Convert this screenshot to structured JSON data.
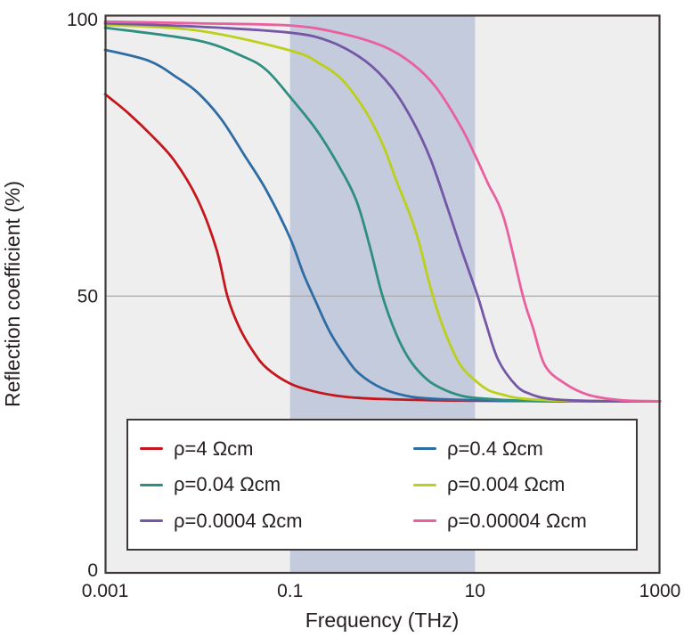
{
  "chart_data": {
    "type": "line",
    "title": "",
    "xlabel": "Frequency (THz)",
    "ylabel": "Reflection coefficient (%)",
    "x_scale": "log",
    "xlim": [
      0.001,
      1000
    ],
    "ylim": [
      0,
      101
    ],
    "x_ticks": [
      0.001,
      0.1,
      10,
      1000
    ],
    "x_tick_labels": [
      "0.001",
      "0.1",
      "10",
      "1000"
    ],
    "y_ticks": [
      0,
      50,
      100
    ],
    "y_tick_labels": [
      "0",
      "50",
      "100"
    ],
    "grid": "horizontal line at y=50 only",
    "highlight_band_x": [
      0.1,
      10
    ],
    "legend_position": "inside bottom, 2 columns, white box with dark border",
    "colors": {
      "plot_bg": "#efeeee",
      "band": "#c3cbdd",
      "frame": "#3f3a39",
      "grid": "#a9a9a9",
      "text": "#262020"
    },
    "series": [
      {
        "label": "ρ=4 Ωcm",
        "rho_ohm_cm": 4,
        "color": "#c4161c",
        "points": [
          [
            0.001,
            86.5
          ],
          [
            0.0018,
            83
          ],
          [
            0.0032,
            79
          ],
          [
            0.0056,
            74.5
          ],
          [
            0.01,
            67.5
          ],
          [
            0.016,
            58.5
          ],
          [
            0.021,
            50
          ],
          [
            0.028,
            44.5
          ],
          [
            0.04,
            40
          ],
          [
            0.056,
            37
          ],
          [
            0.1,
            34.2
          ],
          [
            0.18,
            32.8
          ],
          [
            0.32,
            32
          ],
          [
            0.56,
            31.6
          ],
          [
            1,
            31.4
          ],
          [
            3.2,
            31.2
          ],
          [
            10,
            31.1
          ],
          [
            100,
            31
          ],
          [
            1000,
            31
          ]
        ]
      },
      {
        "label": "ρ=0.4 Ωcm",
        "rho_ohm_cm": 0.4,
        "color": "#2e6da4",
        "points": [
          [
            0.001,
            94.5
          ],
          [
            0.003,
            92.5
          ],
          [
            0.006,
            89.5
          ],
          [
            0.01,
            86.8
          ],
          [
            0.018,
            82
          ],
          [
            0.032,
            75.5
          ],
          [
            0.056,
            69
          ],
          [
            0.1,
            60.5
          ],
          [
            0.14,
            54
          ],
          [
            0.19,
            49
          ],
          [
            0.27,
            43.5
          ],
          [
            0.4,
            39
          ],
          [
            0.56,
            36
          ],
          [
            1,
            33.3
          ],
          [
            1.8,
            32
          ],
          [
            3.2,
            31.5
          ],
          [
            10,
            31.2
          ],
          [
            100,
            31
          ],
          [
            1000,
            31
          ]
        ]
      },
      {
        "label": "ρ=0.04 Ωcm",
        "rho_ohm_cm": 0.04,
        "color": "#2f8e7f",
        "points": [
          [
            0.001,
            98.5
          ],
          [
            0.01,
            96.2
          ],
          [
            0.032,
            93.2
          ],
          [
            0.056,
            90.8
          ],
          [
            0.1,
            86
          ],
          [
            0.19,
            80.2
          ],
          [
            0.33,
            73.8
          ],
          [
            0.52,
            67.3
          ],
          [
            0.72,
            59.3
          ],
          [
            1,
            50
          ],
          [
            1.4,
            43.2
          ],
          [
            2,
            38.3
          ],
          [
            3.1,
            34.8
          ],
          [
            4.8,
            33
          ],
          [
            7.5,
            31.9
          ],
          [
            12,
            31.5
          ],
          [
            32,
            31.1
          ],
          [
            100,
            31
          ],
          [
            1000,
            31
          ]
        ]
      },
      {
        "label": "ρ=0.004 Ωcm",
        "rho_ohm_cm": 0.004,
        "color": "#bccf1b",
        "points": [
          [
            0.001,
            99
          ],
          [
            0.01,
            98
          ],
          [
            0.1,
            94.4
          ],
          [
            0.21,
            92
          ],
          [
            0.37,
            89
          ],
          [
            0.65,
            83.5
          ],
          [
            1,
            77.5
          ],
          [
            1.4,
            71
          ],
          [
            2,
            64.5
          ],
          [
            2.5,
            59.5
          ],
          [
            3.5,
            50
          ],
          [
            5,
            42.5
          ],
          [
            7,
            37.5
          ],
          [
            10,
            34.8
          ],
          [
            14,
            33
          ],
          [
            20,
            32.2
          ],
          [
            32,
            31.5
          ],
          [
            100,
            31.1
          ],
          [
            1000,
            31
          ]
        ]
      },
      {
        "label": "ρ=0.0004 Ωcm",
        "rho_ohm_cm": 0.0004,
        "color": "#7457a6",
        "points": [
          [
            0.001,
            99.3
          ],
          [
            0.01,
            98.7
          ],
          [
            0.1,
            97.6
          ],
          [
            0.27,
            96
          ],
          [
            0.65,
            92.5
          ],
          [
            1.26,
            87.7
          ],
          [
            2.1,
            81.8
          ],
          [
            3.3,
            74.8
          ],
          [
            5.1,
            65.7
          ],
          [
            7.1,
            58.5
          ],
          [
            10.7,
            50
          ],
          [
            13,
            45.3
          ],
          [
            17.8,
            38.5
          ],
          [
            28,
            33.8
          ],
          [
            40,
            32.3
          ],
          [
            56,
            31.6
          ],
          [
            100,
            31.2
          ],
          [
            320,
            31
          ],
          [
            1000,
            31
          ]
        ]
      },
      {
        "label": "ρ=0.00004 Ωcm",
        "rho_ohm_cm": 4e-05,
        "color": "#e9609f",
        "points": [
          [
            0.001,
            99.6
          ],
          [
            0.01,
            99.3
          ],
          [
            0.1,
            98.9
          ],
          [
            0.33,
            97.6
          ],
          [
            1,
            95.2
          ],
          [
            2.1,
            92
          ],
          [
            3.8,
            87.7
          ],
          [
            7,
            80.7
          ],
          [
            10,
            75.5
          ],
          [
            13.7,
            70.5
          ],
          [
            20.6,
            64
          ],
          [
            33,
            50
          ],
          [
            42,
            44.5
          ],
          [
            57,
            37.5
          ],
          [
            92,
            34.3
          ],
          [
            166,
            32.2
          ],
          [
            376,
            31.2
          ],
          [
            1000,
            31
          ]
        ]
      }
    ]
  }
}
